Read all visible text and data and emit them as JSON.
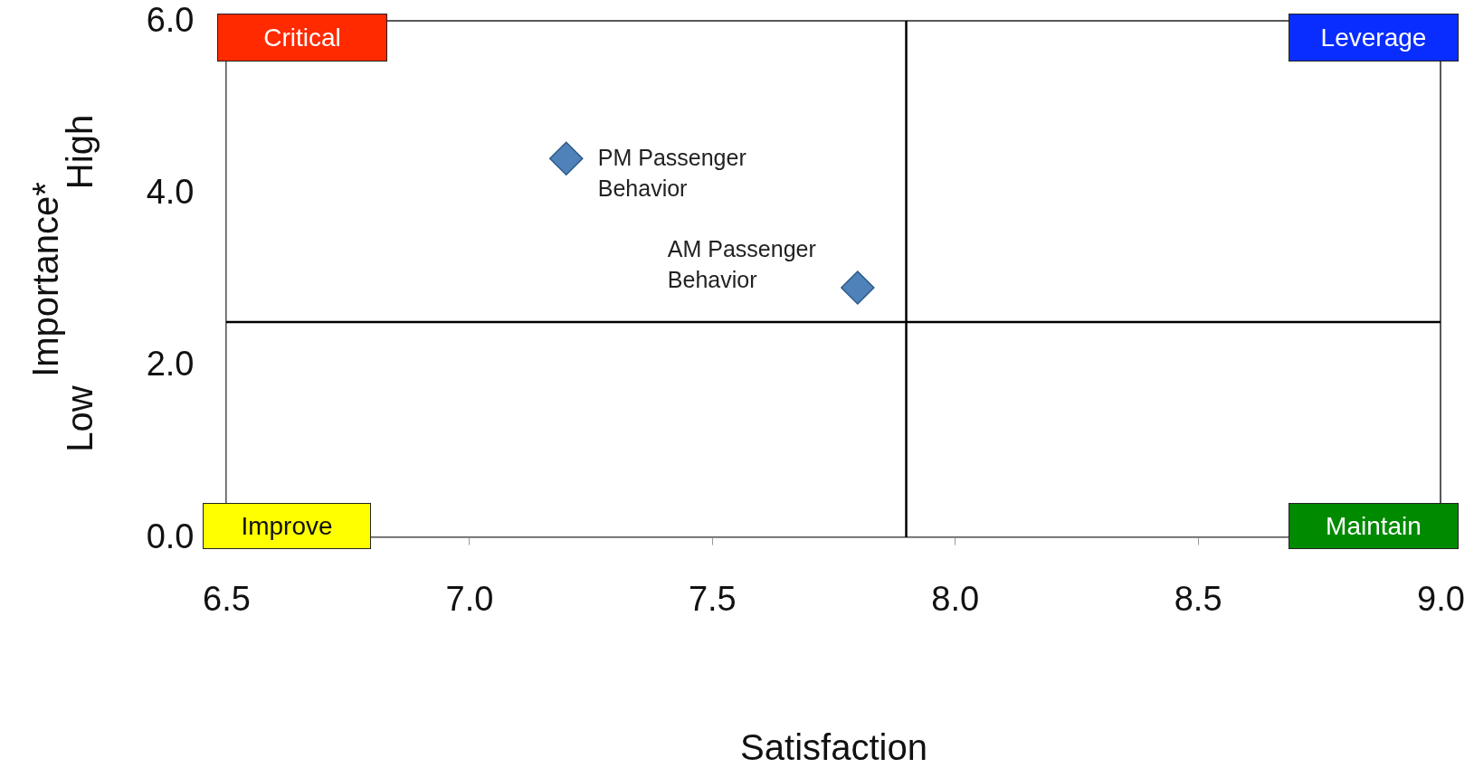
{
  "chart_data": {
    "type": "scatter",
    "xlabel": "Satisfaction",
    "ylabel": "Importance*",
    "x": [
      7.2,
      7.8
    ],
    "series": [
      {
        "color": "#4f82b8",
        "values": [
          4.4,
          2.9
        ]
      }
    ],
    "marker": "diamond",
    "grid": false,
    "xlim": [
      6.5,
      9.0
    ],
    "xticks": [
      {
        "value": 6.5,
        "label": "6.5"
      },
      {
        "value": 7,
        "label": "7.0"
      },
      {
        "value": 7.5,
        "label": "7.5"
      },
      {
        "value": 8,
        "label": "8.0"
      },
      {
        "value": 8.5,
        "label": "8.5"
      },
      {
        "value": 9,
        "label": "9.0"
      }
    ],
    "ylim": [
      0,
      6
    ],
    "yticks": [
      {
        "value": 0,
        "label": "0.0"
      },
      {
        "value": 2,
        "label": "2.0"
      },
      {
        "value": 4,
        "label": "4.0"
      },
      {
        "value": 6,
        "label": "6.0"
      }
    ],
    "ref_lines": [
      {
        "axis": "x",
        "value": 7.9,
        "color": "#000000"
      },
      {
        "axis": "y",
        "value": 2.5,
        "color": "#000000"
      }
    ],
    "annotations": [
      {
        "text": "PM Passenger Behavior",
        "x": 7.2,
        "y": 4.4
      },
      {
        "text": "AM Passenger Behavior",
        "x": 7.8,
        "y": 2.9
      },
      "Critical",
      "Leverage",
      "Improve",
      "Maintain",
      "High",
      "Low"
    ]
  }
}
